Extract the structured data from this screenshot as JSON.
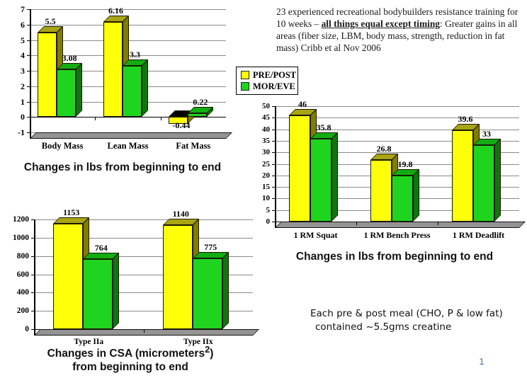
{
  "slide": {
    "page_number": "1"
  },
  "header_note": {
    "line_pre": "23 experienced recreational bodybuilders resistance training for 10 weeks – ",
    "emphasis": "all things equal except timing",
    "emphasis_suffix": ": ",
    "line_rest": "Greater gains in all areas (fiber size, LBM, body mass, strength, reduction in fat mass) Cribb et al Nov 2006"
  },
  "legend": {
    "items": [
      {
        "label": "PRE/POST",
        "color": "#ffff00"
      },
      {
        "label": "MOR/EVE",
        "color": "#1fd41f"
      }
    ],
    "position": "center-top"
  },
  "captions": {
    "mass": "Changes in lbs from beginning to end",
    "strength": "Changes in lbs from beginning to end",
    "csa_line1_pre": "Changes in CSA (micrometers",
    "csa_sup": "2",
    "csa_line1_post": ")",
    "csa_line2": "from beginning to end"
  },
  "creatine_note": {
    "line1": "Each pre & post meal (CHO, P & low fat)",
    "line2": "contained ~5.5gms creatine"
  },
  "colors": {
    "pre_post_front": "#ffff0a",
    "pre_post_top": "#a8a414",
    "pre_post_side": "#827c00",
    "mor_eve_front": "#1fd41f",
    "mor_eve_top": "#12ad12",
    "mor_eve_side": "#0e760e",
    "negative_top": "#000000",
    "floor": "#949494",
    "gridline": "#8a8a8a"
  },
  "chart_data": [
    {
      "id": "mass",
      "type": "bar",
      "title": "Changes in lbs from beginning to end",
      "categories": [
        "Body Mass",
        "Lean Mass",
        "Fat Mass"
      ],
      "series": [
        {
          "name": "PRE/POST",
          "values": [
            5.5,
            6.16,
            -0.44
          ]
        },
        {
          "name": "MOR/EVE",
          "values": [
            3.08,
            3.3,
            0.22
          ]
        }
      ],
      "ylim": [
        -1,
        7
      ],
      "ytick_step": 1,
      "grid": true,
      "xlabel": "",
      "ylabel": ""
    },
    {
      "id": "strength",
      "type": "bar",
      "title": "Changes in lbs from beginning to end",
      "categories": [
        "1 RM Squat",
        "1 RM Bench Press",
        "1 RM Deadlift"
      ],
      "series": [
        {
          "name": "PRE/POST",
          "values": [
            46,
            26.8,
            39.6
          ]
        },
        {
          "name": "MOR/EVE",
          "values": [
            35.8,
            19.8,
            33
          ]
        }
      ],
      "ylim": [
        0,
        50
      ],
      "ytick_step": 5,
      "grid": true,
      "xlabel": "",
      "ylabel": ""
    },
    {
      "id": "csa",
      "type": "bar",
      "title": "Changes in CSA (micrometers²) from beginning to end",
      "categories": [
        "Type IIa",
        "Type IIx"
      ],
      "series": [
        {
          "name": "PRE/POST",
          "values": [
            1153,
            1140
          ]
        },
        {
          "name": "MOR/EVE",
          "values": [
            764,
            775
          ]
        }
      ],
      "ylim": [
        0,
        1200
      ],
      "ytick_step": 200,
      "grid": true,
      "xlabel": "",
      "ylabel": ""
    }
  ]
}
